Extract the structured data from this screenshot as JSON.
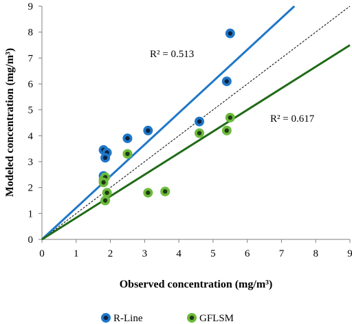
{
  "chart_data": {
    "type": "scatter",
    "xlabel": "Observed concentration (mg/m³)",
    "ylabel": "Modeled concentration (mg/m³)",
    "xlim": [
      0,
      9
    ],
    "ylim": [
      0,
      9
    ],
    "x_ticks": [
      0,
      1,
      2,
      3,
      4,
      5,
      6,
      7,
      8,
      9
    ],
    "y_ticks": [
      0,
      1,
      2,
      3,
      4,
      5,
      6,
      7,
      8,
      9
    ],
    "grid": false,
    "legend_position": "bottom",
    "series": [
      {
        "name": "R-Line",
        "color": "#1f77c8",
        "x": [
          1.8,
          1.9,
          1.85,
          1.8,
          2.5,
          3.1,
          4.6,
          5.4,
          5.5
        ],
        "y": [
          3.45,
          3.35,
          3.15,
          2.45,
          3.9,
          4.2,
          4.55,
          6.1,
          7.95
        ],
        "trendline": {
          "slope": 1.22,
          "intercept": 0,
          "r2_label": "R² = 0.513"
        }
      },
      {
        "name": "GFLSM",
        "color": "#6cbb3c",
        "x": [
          1.8,
          1.85,
          1.8,
          1.85,
          1.9,
          2.5,
          3.1,
          3.6,
          4.6,
          5.4,
          5.5
        ],
        "y": [
          2.3,
          2.4,
          2.2,
          1.5,
          1.8,
          3.3,
          1.8,
          1.85,
          4.1,
          4.2,
          4.7
        ],
        "trendline": {
          "slope": 0.833,
          "intercept": 0,
          "r2_label": "R² = 0.617"
        }
      }
    ],
    "reference_line": {
      "slope": 1,
      "intercept": 0,
      "style": "dashed"
    }
  }
}
